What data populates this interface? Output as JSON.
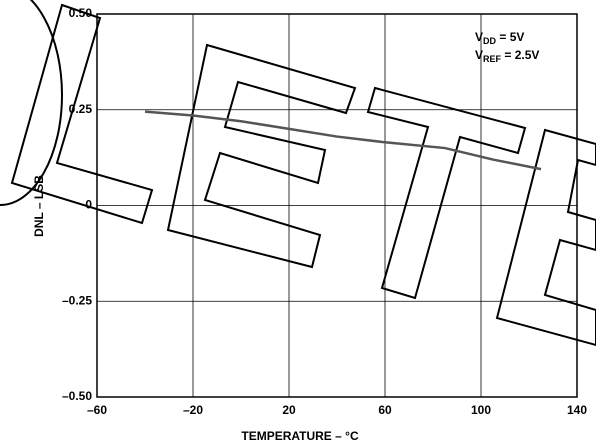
{
  "chart_data": {
    "type": "line",
    "xlabel": "TEMPERATURE – °C",
    "ylabel": "DNL – LSB",
    "annotation": [
      {
        "text": "V",
        "sub": "DD",
        "rest": " = 5V"
      },
      {
        "text": "V",
        "sub": "REF",
        "rest": " = 2.5V"
      }
    ],
    "x": [
      -40,
      -20,
      0,
      20,
      40,
      60,
      85,
      105,
      125
    ],
    "series": [
      {
        "color": "#555555",
        "values": [
          0.245,
          0.235,
          0.22,
          0.2,
          0.18,
          0.165,
          0.15,
          0.12,
          0.095
        ]
      }
    ],
    "xlim": [
      -60,
      140
    ],
    "xticks": [
      {
        "value": -60,
        "label": "–60"
      },
      {
        "value": -20,
        "label": "–20"
      },
      20,
      60,
      100,
      140
    ],
    "ylim": [
      -0.5,
      0.5
    ],
    "yticks": [
      {
        "value": -0.5,
        "label": "–0.50"
      },
      {
        "value": -0.25,
        "label": "–0.25"
      },
      0,
      0.25,
      {
        "value": 0.5,
        "label": "0.50"
      }
    ],
    "grid": true
  }
}
